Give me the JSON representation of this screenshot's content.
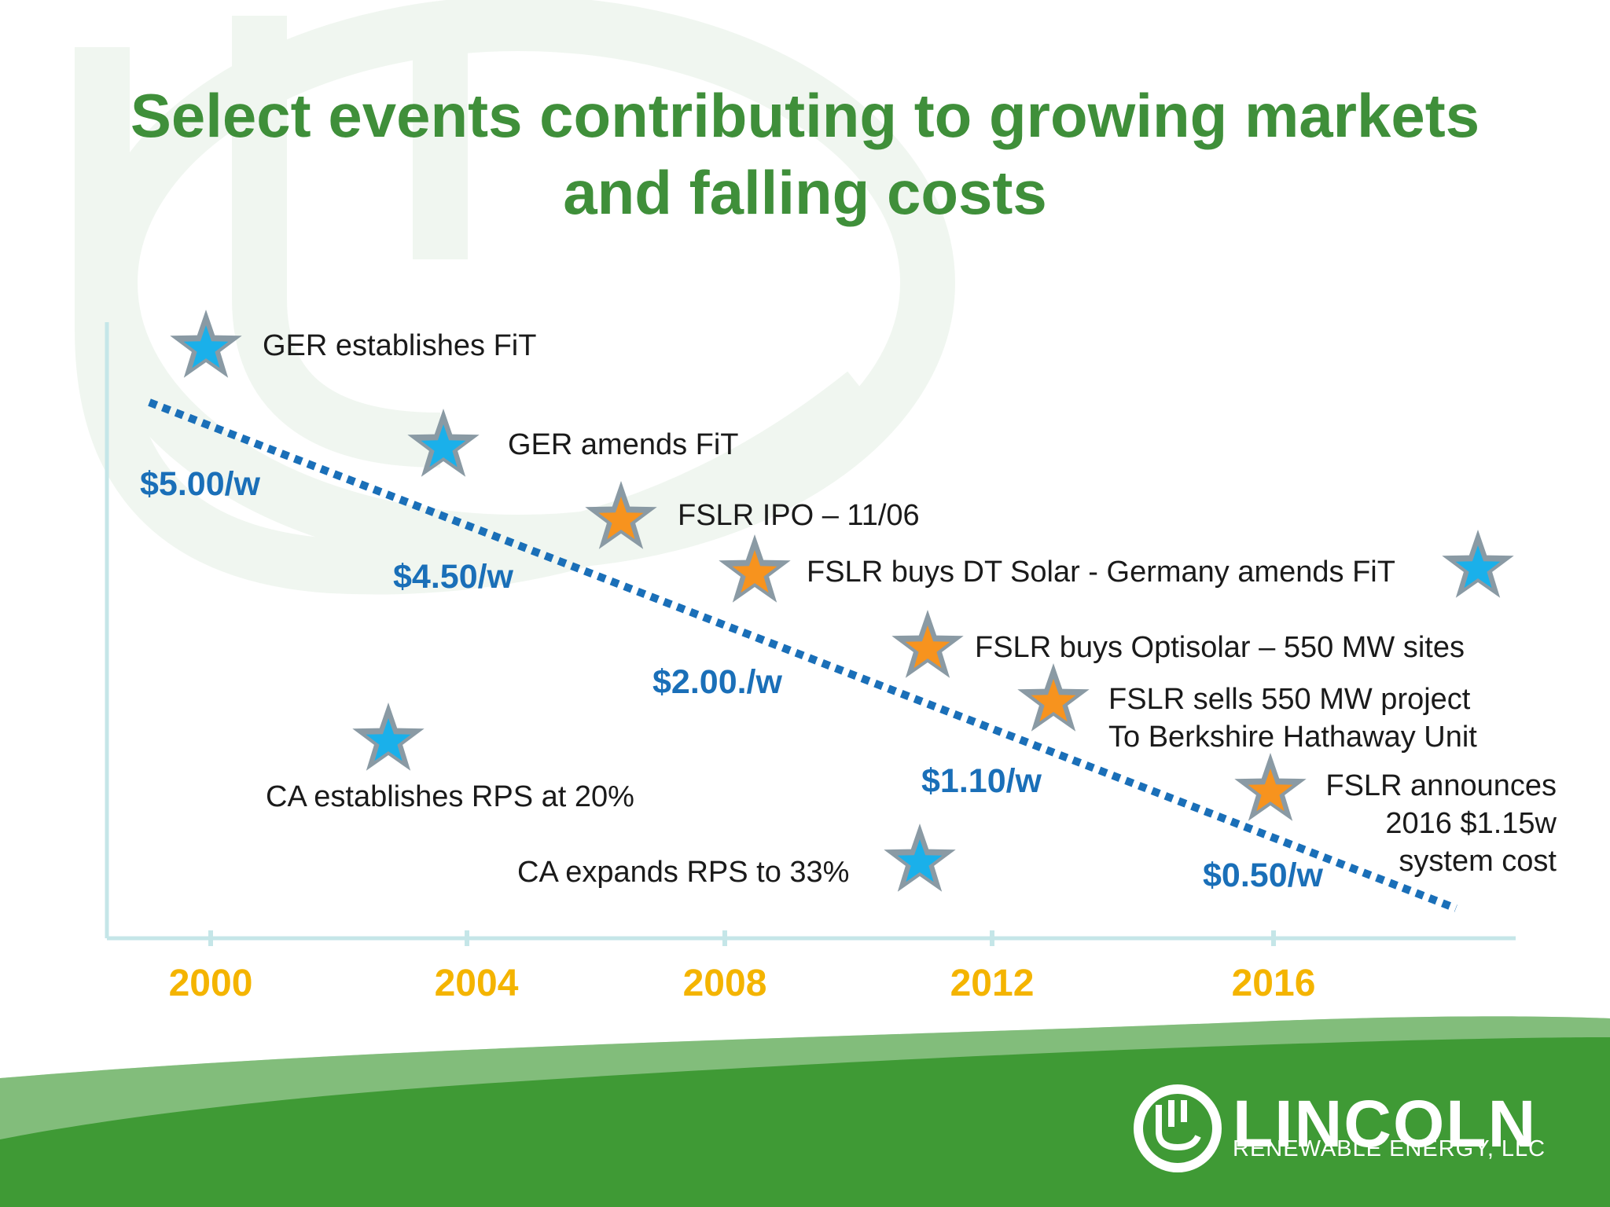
{
  "title_line1": "Select events contributing to growing markets",
  "title_line2": "and falling costs",
  "colors": {
    "title": "#3f8f3a",
    "price": "#1a6fb8",
    "year": "#f4b400",
    "star_blue": "#1ab0ea",
    "star_orange": "#f7931e",
    "star_outline": "#8a9aa4",
    "axis": "#c5e6e8",
    "green_band": "#3f9a35"
  },
  "chart_data": {
    "type": "scatter",
    "x_ticks": [
      "2000",
      "2004",
      "2008",
      "2012",
      "2016"
    ],
    "trend": {
      "type": "line",
      "style": "dotted",
      "color": "#1a6fb8"
    },
    "price_labels": [
      "$5.00/w",
      "$4.50/w",
      "$2.00./w",
      "$1.10/w",
      "$0.50/w"
    ],
    "events": [
      {
        "label": "GER establishes FiT",
        "marker": "blue"
      },
      {
        "label": "GER amends FiT",
        "marker": "blue"
      },
      {
        "label": "FSLR IPO – 11/06",
        "marker": "orange"
      },
      {
        "label": "FSLR buys DT Solar - Germany amends FiT",
        "marker": "orange"
      },
      {
        "label": "FSLR buys Optisolar – 550 MW sites",
        "marker": "orange"
      },
      {
        "label_line1": "FSLR sells 550 MW project",
        "label_line2": "To Berkshire Hathaway Unit",
        "marker": "orange"
      },
      {
        "label_line1": "FSLR announces",
        "label_line2": "2016 $1.15w",
        "label_line3": "system cost",
        "marker": "orange"
      },
      {
        "label": "CA establishes RPS at 20%",
        "marker": "blue"
      },
      {
        "label": "CA expands RPS to 33%",
        "marker": "blue"
      },
      {
        "label": "",
        "marker": "blue"
      }
    ]
  },
  "logo": {
    "name": "LINCOLN",
    "subtitle": "RENEWABLE ENERGY, LLC"
  }
}
